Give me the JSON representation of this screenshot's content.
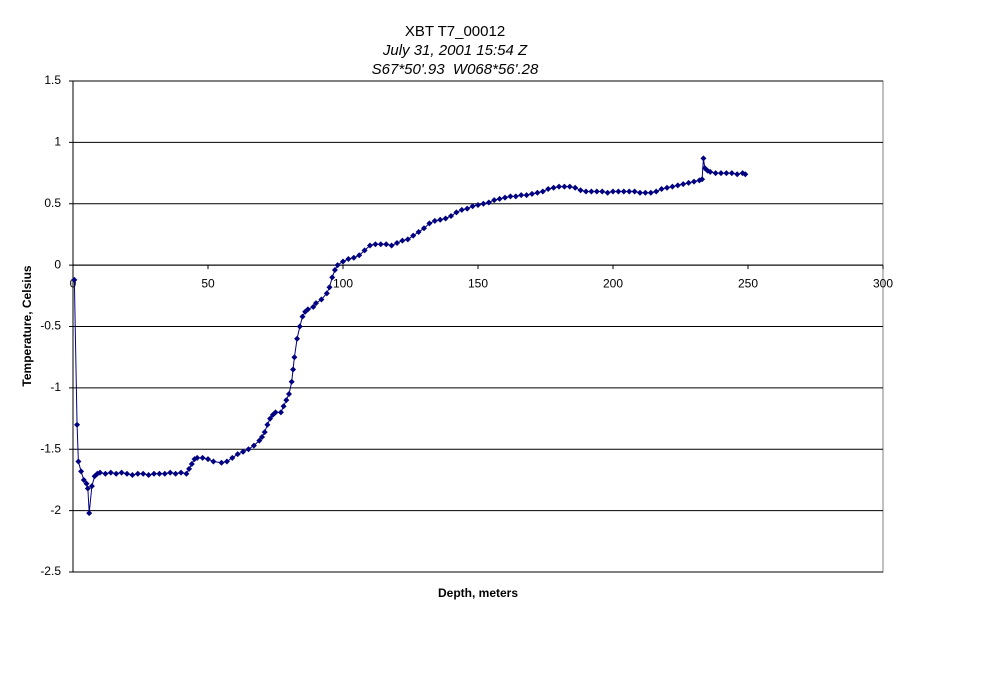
{
  "chart_data": {
    "type": "line",
    "title": "XBT T7_00012",
    "subtitle": [
      "July 31, 2001 15:54 Z",
      "S67*50'.93  W068*56'.28"
    ],
    "xlabel": "Depth, meters",
    "ylabel": "Temperature, Celsius",
    "xlim": [
      0,
      300
    ],
    "xticks": [
      0,
      50,
      100,
      150,
      200,
      250,
      300
    ],
    "ylim": [
      -2.5,
      1.5
    ],
    "yticks": [
      -2.5,
      -2,
      -1.5,
      -1,
      -0.5,
      0,
      0.5,
      1,
      1.5
    ],
    "grid": true,
    "series": [
      {
        "color": "#000080",
        "x": [
          0.5,
          1.5,
          2,
          3,
          4,
          5,
          5.5,
          6,
          7,
          8,
          9,
          10,
          12,
          14,
          16,
          18,
          20,
          22,
          24,
          26,
          28,
          30,
          32,
          34,
          36,
          38,
          40,
          42,
          43,
          44,
          45,
          46,
          48,
          50,
          52,
          55,
          57,
          59,
          61,
          63,
          65,
          67,
          69,
          70,
          71,
          72,
          73,
          74,
          75,
          77,
          78,
          79,
          80,
          81,
          81.5,
          82,
          83,
          84,
          85,
          86,
          87,
          89,
          90,
          92,
          94,
          95,
          96,
          97,
          98,
          100,
          102,
          104,
          106,
          108,
          110,
          112,
          114,
          116,
          118,
          120,
          122,
          124,
          126,
          128,
          130,
          132,
          134,
          136,
          138,
          140,
          142,
          144,
          146,
          148,
          150,
          152,
          154,
          156,
          158,
          160,
          162,
          164,
          166,
          168,
          170,
          172,
          174,
          176,
          178,
          180,
          182,
          184,
          186,
          188,
          190,
          192,
          194,
          196,
          198,
          200,
          202,
          204,
          206,
          208,
          210,
          212,
          214,
          216,
          218,
          220,
          222,
          224,
          226,
          228,
          230,
          232,
          233,
          233.5,
          234,
          235,
          236,
          238,
          240,
          242,
          244,
          246,
          248,
          249
        ],
        "values": [
          -0.12,
          -1.3,
          -1.6,
          -1.68,
          -1.75,
          -1.78,
          -1.82,
          -2.02,
          -1.8,
          -1.72,
          -1.7,
          -1.69,
          -1.7,
          -1.69,
          -1.7,
          -1.69,
          -1.7,
          -1.71,
          -1.7,
          -1.7,
          -1.71,
          -1.7,
          -1.7,
          -1.7,
          -1.69,
          -1.7,
          -1.69,
          -1.7,
          -1.66,
          -1.62,
          -1.58,
          -1.57,
          -1.57,
          -1.58,
          -1.6,
          -1.61,
          -1.6,
          -1.57,
          -1.54,
          -1.52,
          -1.5,
          -1.47,
          -1.43,
          -1.4,
          -1.36,
          -1.3,
          -1.25,
          -1.22,
          -1.2,
          -1.2,
          -1.15,
          -1.1,
          -1.05,
          -0.95,
          -0.85,
          -0.75,
          -0.6,
          -0.5,
          -0.42,
          -0.38,
          -0.36,
          -0.34,
          -0.31,
          -0.28,
          -0.23,
          -0.18,
          -0.1,
          -0.04,
          0.0,
          0.03,
          0.05,
          0.06,
          0.08,
          0.12,
          0.16,
          0.17,
          0.17,
          0.17,
          0.16,
          0.18,
          0.2,
          0.21,
          0.24,
          0.27,
          0.3,
          0.34,
          0.36,
          0.37,
          0.38,
          0.4,
          0.43,
          0.45,
          0.46,
          0.48,
          0.49,
          0.5,
          0.51,
          0.53,
          0.54,
          0.55,
          0.56,
          0.56,
          0.57,
          0.57,
          0.58,
          0.59,
          0.6,
          0.62,
          0.63,
          0.64,
          0.64,
          0.64,
          0.63,
          0.61,
          0.6,
          0.6,
          0.6,
          0.6,
          0.59,
          0.6,
          0.6,
          0.6,
          0.6,
          0.6,
          0.59,
          0.59,
          0.59,
          0.6,
          0.62,
          0.63,
          0.64,
          0.65,
          0.66,
          0.67,
          0.68,
          0.69,
          0.7,
          0.87,
          0.79,
          0.77,
          0.76,
          0.75,
          0.75,
          0.75,
          0.75,
          0.74,
          0.75,
          0.74
        ]
      }
    ]
  }
}
